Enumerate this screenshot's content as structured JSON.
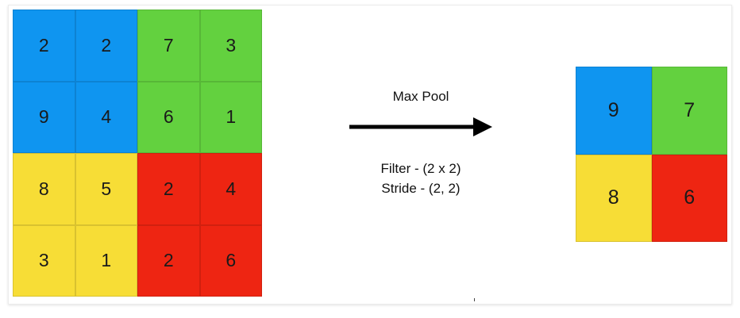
{
  "colors": {
    "blue": "#0f95f0",
    "green": "#63d13f",
    "yellow": "#f7dd36",
    "red": "#ee2512"
  },
  "input_matrix": {
    "values": [
      [
        "2",
        "2",
        "7",
        "3"
      ],
      [
        "9",
        "4",
        "6",
        "1"
      ],
      [
        "8",
        "5",
        "2",
        "4"
      ],
      [
        "3",
        "1",
        "2",
        "6"
      ]
    ],
    "regions": [
      [
        "blue",
        "blue",
        "green",
        "green"
      ],
      [
        "blue",
        "blue",
        "green",
        "green"
      ],
      [
        "yellow",
        "yellow",
        "red",
        "red"
      ],
      [
        "yellow",
        "yellow",
        "red",
        "red"
      ]
    ]
  },
  "operation": {
    "title": "Max Pool",
    "filter": "Filter - (2 x 2)",
    "stride": "Stride - (2, 2)"
  },
  "output_matrix": {
    "values": [
      [
        "9",
        "7"
      ],
      [
        "8",
        "6"
      ]
    ],
    "regions": [
      [
        "blue",
        "green"
      ],
      [
        "yellow",
        "red"
      ]
    ]
  }
}
